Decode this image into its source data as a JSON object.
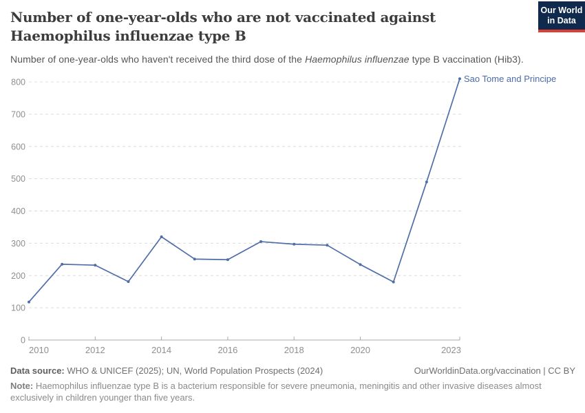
{
  "header": {
    "title_lines": [
      "Number of one-year-olds who are not vaccinated against",
      "Haemophilus influenzae type B"
    ],
    "subtitle": {
      "part1": "Number of one-year-olds who haven't received the third dose of the ",
      "italic": "Haemophilus influenzae",
      "part2": " type B vaccination (Hib3)."
    },
    "logo": {
      "line1": "Our World",
      "line2": "in Data"
    }
  },
  "chart_data": {
    "type": "line",
    "title": "Number of one-year-olds who are not vaccinated against Haemophilus influenzae type B",
    "x": [
      2010,
      2011,
      2012,
      2013,
      2014,
      2015,
      2016,
      2017,
      2018,
      2019,
      2020,
      2021,
      2022,
      2023
    ],
    "series": [
      {
        "name": "Sao Tome and Principe",
        "color": "#4f6da8",
        "values": [
          118,
          235,
          232,
          181,
          320,
          251,
          249,
          305,
          297,
          294,
          234,
          180,
          490,
          810
        ]
      }
    ],
    "xlabel": "",
    "ylabel": "",
    "ylim": [
      0,
      800
    ],
    "yticks": [
      0,
      100,
      200,
      300,
      400,
      500,
      600,
      700,
      800
    ],
    "xticks": [
      2010,
      2012,
      2014,
      2016,
      2018,
      2020,
      2023
    ],
    "grid": "horizontal-dashed",
    "legend": "end-of-line-label",
    "colors": {
      "line": "#4f6da8",
      "entity_label": "#4c6ba8",
      "gridline": "#dcdcdc",
      "axis": "#a8a8a8",
      "tick_label": "#8f8f8f"
    }
  },
  "footer": {
    "data_source_label": "Data source:",
    "data_source_text": " WHO & UNICEF (2025); UN, World Population Prospects (2024)",
    "attribution": "OurWorldinData.org/vaccination | CC BY",
    "note_label": "Note:",
    "note_text": " Haemophilus influenzae type B is a bacterium responsible for severe pneumonia, meningitis and other invasive diseases almost exclusively in children younger than five years."
  }
}
